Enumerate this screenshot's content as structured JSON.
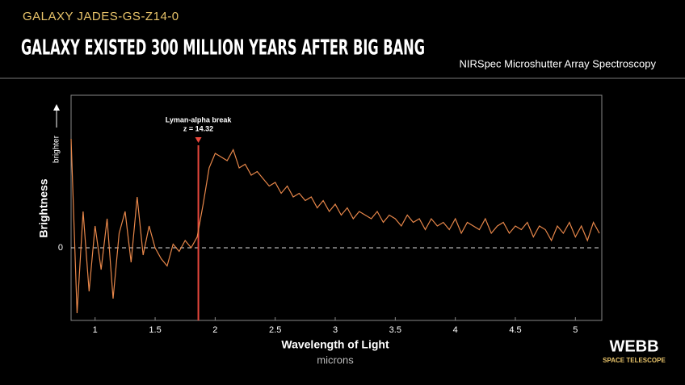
{
  "header": {
    "kicker": "GALAXY JADES-GS-Z14-0",
    "title": "GALAXY EXISTED 300 MILLION YEARS AFTER BIG BANG",
    "subtitle": "NIRSpec Microshutter Array Spectroscopy"
  },
  "logo": {
    "name": "WEBB",
    "tagline": "SPACE TELESCOPE"
  },
  "chart_data": {
    "type": "line",
    "x_label": "Wavelength of Light",
    "x_unit": "microns",
    "y_label": "Brightness",
    "y_arrow_label": "brighter",
    "xlim": [
      0.8,
      5.22
    ],
    "ylim": [
      -1,
      2.1
    ],
    "xticks": [
      1,
      1.5,
      2,
      2.5,
      3,
      3.5,
      4,
      4.5,
      5
    ],
    "yticks": [
      0
    ],
    "annotation": {
      "lines": [
        "Lyman-alpha break",
        "z = 14.32"
      ],
      "x": 1.86,
      "color": "#e8473c"
    },
    "x": [
      0.8,
      0.85,
      0.9,
      0.95,
      1.0,
      1.05,
      1.1,
      1.15,
      1.2,
      1.25,
      1.3,
      1.35,
      1.4,
      1.45,
      1.5,
      1.55,
      1.6,
      1.65,
      1.7,
      1.75,
      1.8,
      1.85,
      1.9,
      1.95,
      2.0,
      2.05,
      2.1,
      2.15,
      2.2,
      2.25,
      2.3,
      2.35,
      2.4,
      2.45,
      2.5,
      2.55,
      2.6,
      2.65,
      2.7,
      2.75,
      2.8,
      2.85,
      2.9,
      2.95,
      3.0,
      3.05,
      3.1,
      3.15,
      3.2,
      3.25,
      3.3,
      3.35,
      3.4,
      3.45,
      3.5,
      3.55,
      3.6,
      3.65,
      3.7,
      3.75,
      3.8,
      3.85,
      3.9,
      3.95,
      4.0,
      4.05,
      4.1,
      4.15,
      4.2,
      4.25,
      4.3,
      4.35,
      4.4,
      4.45,
      4.5,
      4.55,
      4.6,
      4.65,
      4.7,
      4.75,
      4.8,
      4.85,
      4.9,
      4.95,
      5.0,
      5.05,
      5.1,
      5.15,
      5.2
    ],
    "series": [
      {
        "color": "#e8874a",
        "values": [
          1.5,
          -0.9,
          0.5,
          -0.6,
          0.3,
          -0.3,
          0.4,
          -0.7,
          0.2,
          0.5,
          -0.2,
          0.7,
          -0.1,
          0.3,
          0.0,
          -0.15,
          -0.25,
          0.05,
          -0.05,
          0.1,
          0.0,
          0.15,
          0.6,
          1.1,
          1.3,
          1.25,
          1.2,
          1.35,
          1.1,
          1.15,
          1.0,
          1.05,
          0.95,
          0.85,
          0.9,
          0.75,
          0.85,
          0.7,
          0.75,
          0.65,
          0.7,
          0.55,
          0.65,
          0.5,
          0.6,
          0.45,
          0.55,
          0.4,
          0.5,
          0.45,
          0.4,
          0.5,
          0.35,
          0.45,
          0.4,
          0.3,
          0.45,
          0.35,
          0.4,
          0.25,
          0.4,
          0.3,
          0.35,
          0.25,
          0.4,
          0.2,
          0.35,
          0.3,
          0.25,
          0.4,
          0.2,
          0.3,
          0.35,
          0.2,
          0.3,
          0.25,
          0.35,
          0.15,
          0.3,
          0.25,
          0.1,
          0.3,
          0.2,
          0.35,
          0.15,
          0.3,
          0.1,
          0.35,
          0.2
        ]
      }
    ]
  }
}
